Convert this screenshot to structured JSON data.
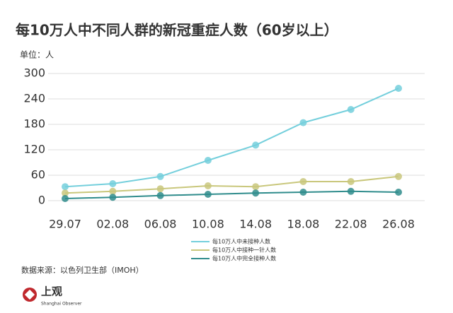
{
  "chart_data": {
    "type": "line",
    "title": "每10万人中不同人群的新冠重症人数（60岁以上）",
    "unit": "单位：人",
    "categories": [
      "29.07",
      "02.08",
      "06.08",
      "10.08",
      "14.08",
      "18.08",
      "22.08",
      "26.08"
    ],
    "series": [
      {
        "name": "每10万人中未接种人数",
        "color": "#74cfdc",
        "values": [
          33,
          40,
          57,
          95,
          131,
          184,
          215,
          265
        ]
      },
      {
        "name": "每10万人中接种一针人数",
        "color": "#c9c77c",
        "values": [
          18,
          22,
          28,
          35,
          33,
          45,
          45,
          57
        ]
      },
      {
        "name": "每10万人中完全接种人数",
        "color": "#2f8c8c",
        "values": [
          5,
          8,
          12,
          15,
          18,
          20,
          22,
          20
        ]
      }
    ],
    "ylim": [
      0,
      300
    ],
    "yticks": [
      0,
      60,
      120,
      180,
      240,
      300
    ],
    "grid": true,
    "source": "数据来源：以色列卫生部（IMOH）",
    "brand": {
      "name": "上观",
      "subtitle": "Shanghai Observer"
    }
  }
}
